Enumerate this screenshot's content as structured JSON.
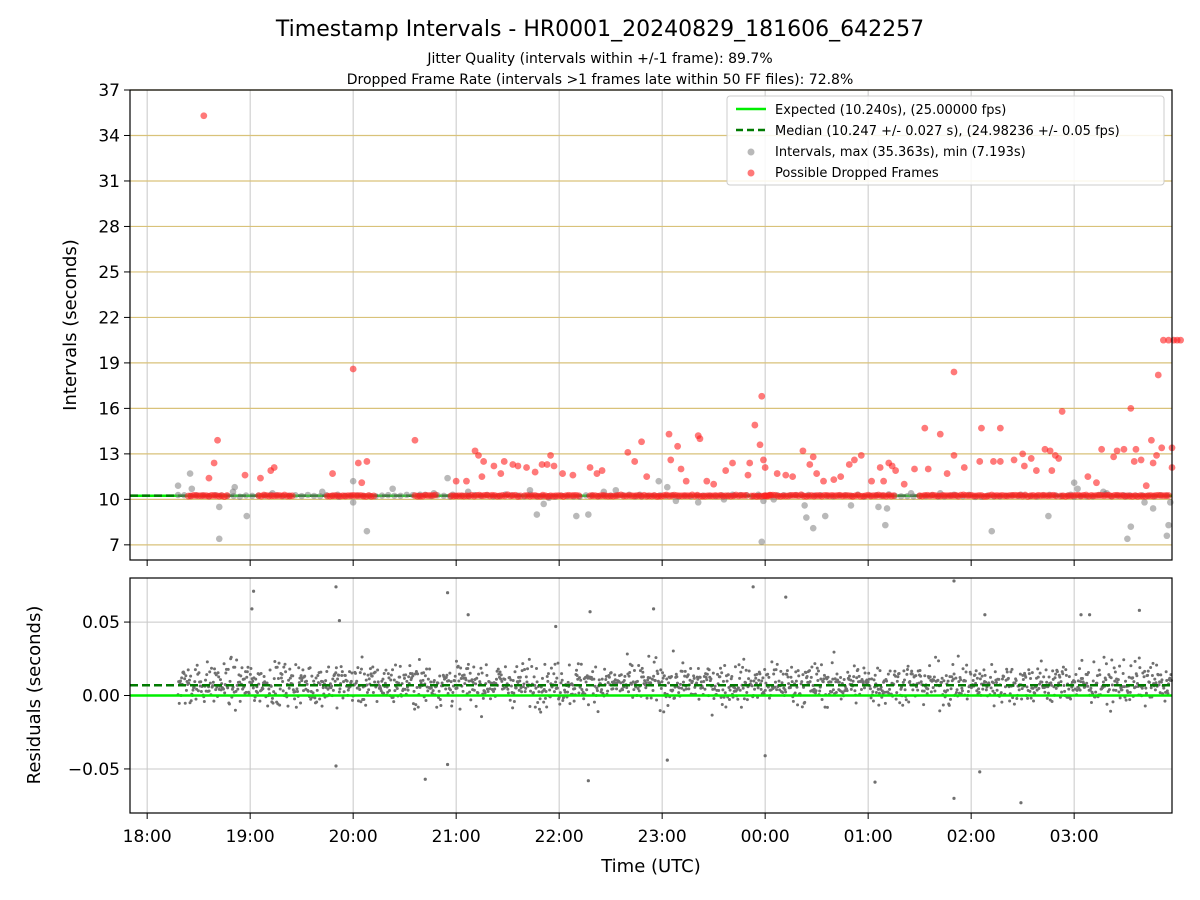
{
  "chart_data": [
    {
      "type": "scatter",
      "title": "Timestamp Intervals - HR0001_20240829_181606_642257",
      "subtitle_lines": [
        "Jitter Quality (intervals within +/-1 frame): 89.7%",
        "Dropped Frame Rate (intervals >1 frames late within 50 FF files): 72.8%"
      ],
      "ylabel": "Intervals (seconds)",
      "ylim": [
        6,
        37
      ],
      "yticks": [
        7,
        10,
        13,
        16,
        19,
        22,
        25,
        28,
        31,
        34,
        37
      ],
      "ytick_labels": [
        "7",
        "10",
        "13",
        "16",
        "19",
        "22",
        "25",
        "28",
        "31",
        "34",
        "37"
      ],
      "x_range_hours": [
        "17:50",
        "03:57"
      ],
      "legend_position": "upper right",
      "grid": "horizontal gold gridlines, vertical gray gridlines",
      "colors": {
        "expected": "#00ee00",
        "median": "#007a00",
        "intervals": "#808080",
        "dropped": "#ff2020",
        "grid_h": "#d9c27a",
        "grid_v": "#c8c8c8"
      },
      "series": [
        {
          "name": "Expected (10.240s), (25.00000 fps)",
          "kind": "line",
          "y": 10.24
        },
        {
          "name": "Median (10.247 +/- 0.027 s), (24.98236 +/- 0.05 fps)",
          "kind": "dashed-line",
          "y": 10.247
        },
        {
          "name": "Intervals, max (35.363s), min (7.193s)",
          "kind": "scatter",
          "points": [
            [
              "18:18",
              10.9
            ],
            [
              "18:25",
              11.7
            ],
            [
              "18:26",
              10.7
            ],
            [
              "18:42",
              9.5
            ],
            [
              "18:42",
              7.4
            ],
            [
              "18:51",
              10.8
            ],
            [
              "18:50",
              10.5
            ],
            [
              "18:58",
              8.9
            ],
            [
              "19:13",
              10.4
            ],
            [
              "19:42",
              10.5
            ],
            [
              "19:51",
              10.3
            ],
            [
              "20:00",
              9.8
            ],
            [
              "20:00",
              11.2
            ],
            [
              "20:08",
              7.9
            ],
            [
              "20:23",
              10.7
            ],
            [
              "20:39",
              10.3
            ],
            [
              "20:47",
              10.4
            ],
            [
              "20:55",
              11.4
            ],
            [
              "20:58",
              10.3
            ],
            [
              "21:07",
              10.5
            ],
            [
              "21:43",
              10.6
            ],
            [
              "21:47",
              9.0
            ],
            [
              "21:51",
              9.7
            ],
            [
              "21:54",
              10.1
            ],
            [
              "22:10",
              8.9
            ],
            [
              "22:17",
              9.0
            ],
            [
              "22:26",
              10.5
            ],
            [
              "22:33",
              10.6
            ],
            [
              "22:47",
              10.3
            ],
            [
              "22:58",
              11.2
            ],
            [
              "23:03",
              10.8
            ],
            [
              "23:08",
              9.9
            ],
            [
              "23:21",
              9.8
            ],
            [
              "23:36",
              10.0
            ],
            [
              "23:41",
              10.3
            ],
            [
              "23:56",
              10.3
            ],
            [
              "23:58",
              7.2
            ],
            [
              "23:59",
              9.9
            ],
            [
              "00:05",
              10.0
            ],
            [
              "00:23",
              9.6
            ],
            [
              "00:24",
              8.8
            ],
            [
              "00:28",
              8.1
            ],
            [
              "00:35",
              8.9
            ],
            [
              "00:50",
              9.6
            ],
            [
              "01:06",
              9.5
            ],
            [
              "01:10",
              8.3
            ],
            [
              "01:11",
              9.4
            ],
            [
              "01:25",
              10.4
            ],
            [
              "01:42",
              10.4
            ],
            [
              "01:50",
              10.3
            ],
            [
              "02:12",
              7.9
            ],
            [
              "02:29",
              10.3
            ],
            [
              "02:45",
              8.9
            ],
            [
              "02:58",
              10.3
            ],
            [
              "03:00",
              11.1
            ],
            [
              "03:02",
              10.7
            ],
            [
              "03:17",
              10.5
            ],
            [
              "03:19",
              10.4
            ],
            [
              "03:30",
              10.2
            ],
            [
              "03:33",
              8.2
            ],
            [
              "03:31",
              7.4
            ],
            [
              "03:41",
              9.8
            ],
            [
              "03:46",
              9.4
            ],
            [
              "03:55",
              8.3
            ],
            [
              "03:54",
              7.6
            ],
            [
              "03:56",
              9.8
            ]
          ]
        },
        {
          "name": "Possible Dropped Frames",
          "kind": "scatter",
          "baseline_y": 10.24,
          "baseline_segments": [
            [
              "18:24",
              "18:47"
            ],
            [
              "19:05",
              "19:25"
            ],
            [
              "19:45",
              "20:12"
            ],
            [
              "20:36",
              "20:48"
            ],
            [
              "20:57",
              "21:38"
            ],
            [
              "21:40",
              "22:12"
            ],
            [
              "22:18",
              "22:57"
            ],
            [
              "22:58",
              "23:50"
            ],
            [
              "23:52",
              "00:03"
            ],
            [
              "00:00",
              "01:16"
            ],
            [
              "01:30",
              "02:50"
            ],
            [
              "02:52",
              "03:56"
            ]
          ],
          "points": [
            [
              "18:33",
              35.3
            ],
            [
              "18:39",
              12.4
            ],
            [
              "18:41",
              13.9
            ],
            [
              "18:36",
              11.4
            ],
            [
              "18:57",
              11.6
            ],
            [
              "19:06",
              11.4
            ],
            [
              "19:12",
              11.9
            ],
            [
              "19:14",
              12.1
            ],
            [
              "19:48",
              11.7
            ],
            [
              "20:00",
              18.6
            ],
            [
              "20:03",
              12.4
            ],
            [
              "20:08",
              12.5
            ],
            [
              "20:05",
              11.1
            ],
            [
              "20:36",
              13.9
            ],
            [
              "21:00",
              11.2
            ],
            [
              "21:06",
              11.2
            ],
            [
              "21:11",
              13.2
            ],
            [
              "21:13",
              12.9
            ],
            [
              "21:16",
              12.5
            ],
            [
              "21:15",
              11.5
            ],
            [
              "21:22",
              12.2
            ],
            [
              "21:26",
              11.7
            ],
            [
              "21:28",
              12.5
            ],
            [
              "21:33",
              12.3
            ],
            [
              "21:36",
              12.2
            ],
            [
              "21:41",
              12.1
            ],
            [
              "21:46",
              11.8
            ],
            [
              "21:50",
              12.3
            ],
            [
              "21:53",
              12.3
            ],
            [
              "21:55",
              12.9
            ],
            [
              "21:57",
              12.2
            ],
            [
              "22:02",
              11.7
            ],
            [
              "22:08",
              11.6
            ],
            [
              "22:18",
              12.1
            ],
            [
              "22:22",
              11.7
            ],
            [
              "22:25",
              11.9
            ],
            [
              "22:40",
              13.1
            ],
            [
              "22:44",
              12.5
            ],
            [
              "22:48",
              13.8
            ],
            [
              "22:51",
              11.5
            ],
            [
              "23:04",
              14.3
            ],
            [
              "23:05",
              12.6
            ],
            [
              "23:09",
              13.5
            ],
            [
              "23:11",
              12.0
            ],
            [
              "23:14",
              11.2
            ],
            [
              "23:21",
              14.2
            ],
            [
              "23:22",
              14.0
            ],
            [
              "23:26",
              11.2
            ],
            [
              "23:30",
              11.0
            ],
            [
              "23:37",
              11.9
            ],
            [
              "23:41",
              12.4
            ],
            [
              "23:50",
              11.6
            ],
            [
              "23:51",
              12.4
            ],
            [
              "23:54",
              14.9
            ],
            [
              "23:57",
              13.6
            ],
            [
              "23:58",
              16.8
            ],
            [
              "23:59",
              12.6
            ],
            [
              "24:00",
              12.1
            ],
            [
              "24:07",
              11.7
            ],
            [
              "24:12",
              11.6
            ],
            [
              "24:16",
              11.5
            ],
            [
              "24:22",
              13.2
            ],
            [
              "24:26",
              12.3
            ],
            [
              "24:28",
              12.8
            ],
            [
              "24:30",
              11.7
            ],
            [
              "24:34",
              11.2
            ],
            [
              "24:40",
              11.3
            ],
            [
              "24:44",
              11.5
            ],
            [
              "24:49",
              12.3
            ],
            [
              "24:52",
              12.6
            ],
            [
              "24:56",
              12.9
            ],
            [
              "25:02",
              11.2
            ],
            [
              "25:07",
              12.1
            ],
            [
              "25:09",
              11.2
            ],
            [
              "25:12",
              12.4
            ],
            [
              "25:14",
              12.2
            ],
            [
              "25:16",
              11.9
            ],
            [
              "25:21",
              11.0
            ],
            [
              "25:27",
              12.0
            ],
            [
              "25:33",
              14.7
            ],
            [
              "25:35",
              12.0
            ],
            [
              "25:42",
              14.3
            ],
            [
              "25:46",
              11.7
            ],
            [
              "25:50",
              12.9
            ],
            [
              "25:50",
              18.4
            ],
            [
              "25:56",
              12.1
            ],
            [
              "26:05",
              12.5
            ],
            [
              "26:06",
              14.7
            ],
            [
              "26:13",
              12.5
            ],
            [
              "26:17",
              12.5
            ],
            [
              "26:17",
              14.7
            ],
            [
              "26:25",
              12.6
            ],
            [
              "26:30",
              13.0
            ],
            [
              "26:31",
              12.2
            ],
            [
              "26:35",
              12.7
            ],
            [
              "26:38",
              11.9
            ],
            [
              "26:43",
              13.3
            ],
            [
              "26:46",
              13.2
            ],
            [
              "26:47",
              11.9
            ],
            [
              "26:49",
              12.9
            ],
            [
              "26:51",
              12.7
            ],
            [
              "26:53",
              15.8
            ],
            [
              "27:08",
              11.5
            ],
            [
              "27:13",
              11.1
            ],
            [
              "27:16",
              13.3
            ],
            [
              "27:23",
              12.8
            ],
            [
              "27:25",
              13.2
            ],
            [
              "27:29",
              13.3
            ],
            [
              "27:33",
              16.0
            ],
            [
              "27:35",
              12.5
            ],
            [
              "27:36",
              13.3
            ],
            [
              "27:39",
              12.6
            ],
            [
              "27:42",
              10.9
            ],
            [
              "27:45",
              13.9
            ],
            [
              "27:46",
              12.4
            ],
            [
              "27:48",
              12.9
            ],
            [
              "27:49",
              18.2
            ],
            [
              "27:51",
              13.4
            ],
            [
              "27:52",
              20.5
            ],
            [
              "27:55",
              20.5
            ],
            [
              "27:57",
              13.4
            ],
            [
              "27:57",
              12.1
            ],
            [
              "27:58",
              20.5
            ],
            [
              "28:00",
              20.5
            ],
            [
              "28:02",
              20.5
            ]
          ]
        }
      ]
    },
    {
      "type": "scatter",
      "ylabel": "Residuals (seconds)",
      "xlabel": "Time (UTC)",
      "ylim": [
        -0.08,
        0.08
      ],
      "yticks": [
        -0.05,
        0.0,
        0.05
      ],
      "ytick_labels": [
        "−0.05",
        "0.00",
        "0.05"
      ],
      "xticks": [
        "18:00",
        "19:00",
        "20:00",
        "21:00",
        "22:00",
        "23:00",
        "00:00",
        "01:00",
        "02:00",
        "03:00"
      ],
      "x_range_hours": [
        "17:50",
        "03:57"
      ],
      "data_range_hours": [
        "18:18",
        "03:57"
      ],
      "residual_spread": {
        "typical_abs": 0.015,
        "max": 0.078,
        "min": -0.073
      },
      "outliers": [
        [
          "19:02",
          0.071
        ],
        [
          "19:01",
          0.059
        ],
        [
          "19:50",
          0.074
        ],
        [
          "19:52",
          0.051
        ],
        [
          "20:55",
          0.07
        ],
        [
          "21:07",
          0.055
        ],
        [
          "21:58",
          0.047
        ],
        [
          "22:18",
          0.057
        ],
        [
          "22:55",
          0.059
        ],
        [
          "23:53",
          0.074
        ],
        [
          "00:12",
          0.067
        ],
        [
          "01:50",
          0.078
        ],
        [
          "02:08",
          0.055
        ],
        [
          "03:04",
          0.055
        ],
        [
          "03:09",
          0.055
        ],
        [
          "03:38",
          0.058
        ],
        [
          "19:50",
          -0.048
        ],
        [
          "20:42",
          -0.057
        ],
        [
          "20:55",
          -0.047
        ],
        [
          "22:17",
          -0.058
        ],
        [
          "23:03",
          -0.044
        ],
        [
          "00:00",
          -0.041
        ],
        [
          "01:04",
          -0.059
        ],
        [
          "01:50",
          -0.07
        ],
        [
          "02:05",
          -0.052
        ],
        [
          "02:29",
          -0.073
        ]
      ],
      "series": [
        {
          "name": "Expected",
          "kind": "line",
          "y": 0.0
        },
        {
          "name": "Median",
          "kind": "dashed-line",
          "y": 0.007
        }
      ]
    }
  ]
}
